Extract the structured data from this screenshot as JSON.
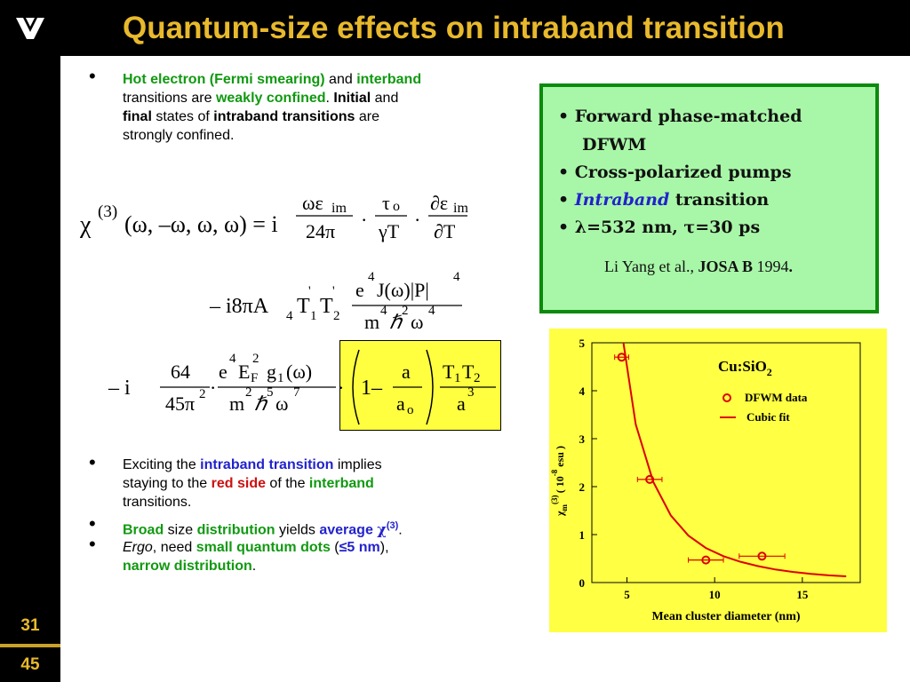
{
  "slide": {
    "title": "Quantum-size effects on intraband transition",
    "number": "31",
    "total": "45",
    "logo_text": "V"
  },
  "bullets_top": {
    "l1a": "Hot electron (Fermi smearing)",
    "l1b": " and ",
    "l1c": "interband",
    "l2a": "transitions are ",
    "l2b": "weakly confined",
    "l2c": ".  ",
    "l2d": "Initial",
    "l2e": " and",
    "l3a": "final",
    "l3b": " states of ",
    "l3c": "intraband transitions",
    "l3d": " are",
    "l4": "strongly confined."
  },
  "bullets_bottom": {
    "b1l1a": "Exciting the ",
    "b1l1b": "intraband transition",
    "b1l1c": " implies",
    "b1l2a": "staying to the ",
    "b1l2b": "red side",
    "b1l2c": " of the ",
    "b1l2d": "interband",
    "b1l3": "transitions.",
    "b2a": "Broad",
    "b2b": " size ",
    "b2c": "distribution",
    "b2d": " yields ",
    "b2e": "average ",
    "b2f": "χ",
    "b2g": "(3)",
    "b2h": ".",
    "b3a": "Ergo",
    "b3b": ", need ",
    "b3c": "small quantum dots",
    "b3d": " (",
    "b3e": "≤5 nm",
    "b3f": "),",
    "b3g": "narrow distribution",
    "b3h": "."
  },
  "box": {
    "i1a": "• Forward phase-matched",
    "i1b": "DFWM",
    "i2": "• Cross-polarized pumps",
    "i3a": "• ",
    "i3b": "Intraband",
    "i3c": " transition",
    "i4": "•  λ=532 nm, τ=30 ps",
    "ref_a": "Li Yang et al., ",
    "ref_b": "JOSA B",
    "ref_c": " 1994",
    "ref_d": "."
  },
  "equation": {
    "chi": "χ",
    "sup3": "(3)",
    "args": "(ω, –ω, ω, ω) = i",
    "n1": "ωε",
    "n1s": "im",
    "d1": "24π",
    "n2": "τ",
    "n2s": "o",
    "d2": "γT",
    "n3": "∂ε",
    "n3s": "im",
    "d3": "∂T",
    "l2lead": "– i8πA",
    "l2s4": "4",
    "l2T": "T",
    "l2s1": "1",
    "l2p": "'",
    "l2T2": "T",
    "l2s2": "2",
    "n4": "e",
    "n4e": "4",
    "n4b": "J(ω)|P|",
    "n4e2": "4",
    "d4": "m",
    "d4e": "4",
    "d4h": "ℏ",
    "d4e2": "2",
    "d4w": "ω",
    "d4e3": "4",
    "l3lead": "– i",
    "n5": "64",
    "d5": "45π",
    "d5e": "2",
    "n6a": "e",
    "n6e": "4",
    "n6b": "E",
    "n6s": "F",
    "n6e2": "2",
    "n6c": "g",
    "n6s2": "1",
    "n6d": "(ω)",
    "d6a": "m",
    "d6e": "2",
    "d6h": "ℏ",
    "d6e2": "5",
    "d6w": "ω",
    "d6e3": "7",
    "one": "1–",
    "n7": "a",
    "d7": "a",
    "d7s": "o",
    "n8": "T",
    "n8s": "1",
    "n8b": "T",
    "n8s2": "2",
    "d8": "a",
    "d8e": "3",
    "dot": "·"
  },
  "chart_data": {
    "type": "scatter",
    "title": "Cu:SiO2",
    "title_main": "Cu:SiO",
    "title_sub": "2",
    "xlabel": "Mean cluster diameter (nm)",
    "ylabel_a": "χ",
    "ylabel_b": "m",
    "ylabel_c": "(3)",
    "ylabel_d": "( 10",
    "ylabel_e": "-8",
    "ylabel_f": " esu )",
    "xlim": [
      3,
      18.3
    ],
    "ylim": [
      0,
      5
    ],
    "xticks": [
      5,
      10,
      15
    ],
    "yticks": [
      0,
      1,
      2,
      3,
      4,
      5
    ],
    "xtick_labels": [
      "5",
      "10",
      "15"
    ],
    "ytick_labels": [
      "0",
      "1",
      "2",
      "3",
      "4",
      "5"
    ],
    "legend_placement": "top-right",
    "series": [
      {
        "name": "DFWM data",
        "marker": "circle",
        "color": "#dd0000",
        "points": [
          {
            "x": 4.7,
            "y": 4.7,
            "xerr": 0.4
          },
          {
            "x": 6.3,
            "y": 2.15,
            "xerr": 0.7
          },
          {
            "x": 9.5,
            "y": 0.47,
            "xerr": 1.0
          },
          {
            "x": 12.7,
            "y": 0.55,
            "xerr": 1.3
          }
        ]
      },
      {
        "name": "Cubic fit",
        "type": "line",
        "color": "#dd0000",
        "points": [
          {
            "x": 4.8,
            "y": 5.0
          },
          {
            "x": 5.5,
            "y": 3.3
          },
          {
            "x": 6.5,
            "y": 2.1
          },
          {
            "x": 7.5,
            "y": 1.4
          },
          {
            "x": 8.5,
            "y": 0.98
          },
          {
            "x": 9.5,
            "y": 0.72
          },
          {
            "x": 10.5,
            "y": 0.55
          },
          {
            "x": 11.5,
            "y": 0.43
          },
          {
            "x": 12.5,
            "y": 0.34
          },
          {
            "x": 13.5,
            "y": 0.27
          },
          {
            "x": 14.5,
            "y": 0.22
          },
          {
            "x": 15.5,
            "y": 0.18
          },
          {
            "x": 16.5,
            "y": 0.15
          },
          {
            "x": 17.5,
            "y": 0.13
          }
        ]
      }
    ]
  }
}
